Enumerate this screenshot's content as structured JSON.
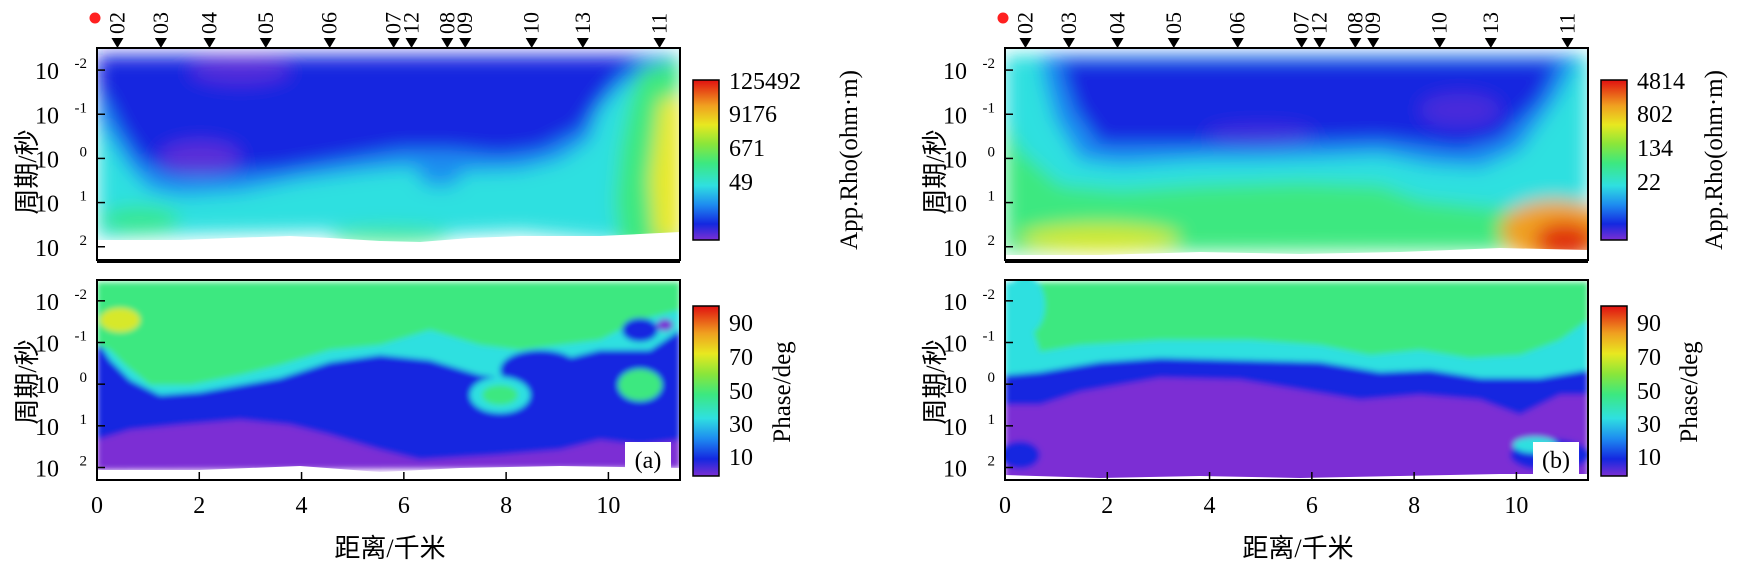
{
  "chart_data": [
    {
      "type": "heatmap",
      "panel_label": "(a)",
      "xlabel": "距离/千米",
      "ylabel": "周期/秒",
      "xlim": [
        0,
        11.4
      ],
      "x_ticks": [
        "0",
        "2",
        "4",
        "6",
        "8",
        "10"
      ],
      "x_tick_values": [
        0,
        2,
        4,
        6,
        8,
        10
      ],
      "y_ticks": [
        {
          "base": "10",
          "exp": "-2"
        },
        {
          "base": "10",
          "exp": "-1"
        },
        {
          "base": "10",
          "exp": "0"
        },
        {
          "base": "10",
          "exp": "1"
        },
        {
          "base": "10",
          "exp": "2"
        }
      ],
      "y_tick_exponents": [
        -2,
        -1,
        0,
        1,
        2
      ],
      "period_log_range": [
        -2.5,
        2.3
      ],
      "stations": [
        {
          "label": "02",
          "km": 0.4
        },
        {
          "label": "03",
          "km": 1.25
        },
        {
          "label": "04",
          "km": 2.2
        },
        {
          "label": "05",
          "km": 3.3
        },
        {
          "label": "06",
          "km": 4.55
        },
        {
          "label": "07",
          "km": 5.8
        },
        {
          "label": "12",
          "km": 6.15
        },
        {
          "label": "08",
          "km": 6.85
        },
        {
          "label": "09",
          "km": 7.2
        },
        {
          "label": "10",
          "km": 8.5
        },
        {
          "label": "13",
          "km": 9.5
        },
        {
          "label": "11",
          "km": 11.0
        }
      ],
      "rho_colorbar": {
        "label": "App.Rho(ohm·m)",
        "ticks": [
          "125492",
          "9176",
          "671",
          "49"
        ]
      },
      "phase_colorbar": {
        "label": "Phase/deg",
        "ticks": [
          "90",
          "70",
          "50",
          "30",
          "10"
        ]
      }
    },
    {
      "type": "heatmap",
      "panel_label": "(b)",
      "xlabel": "距离/千米",
      "ylabel": "周期/秒",
      "xlim": [
        0,
        11.4
      ],
      "x_ticks": [
        "0",
        "2",
        "4",
        "6",
        "8",
        "10"
      ],
      "x_tick_values": [
        0,
        2,
        4,
        6,
        8,
        10
      ],
      "y_ticks": [
        {
          "base": "10",
          "exp": "-2"
        },
        {
          "base": "10",
          "exp": "-1"
        },
        {
          "base": "10",
          "exp": "0"
        },
        {
          "base": "10",
          "exp": "1"
        },
        {
          "base": "10",
          "exp": "2"
        }
      ],
      "y_tick_exponents": [
        -2,
        -1,
        0,
        1,
        2
      ],
      "period_log_range": [
        -2.5,
        2.3
      ],
      "stations": [
        {
          "label": "02",
          "km": 0.4
        },
        {
          "label": "03",
          "km": 1.25
        },
        {
          "label": "04",
          "km": 2.2
        },
        {
          "label": "05",
          "km": 3.3
        },
        {
          "label": "06",
          "km": 4.55
        },
        {
          "label": "07",
          "km": 5.8
        },
        {
          "label": "12",
          "km": 6.15
        },
        {
          "label": "08",
          "km": 6.85
        },
        {
          "label": "09",
          "km": 7.2
        },
        {
          "label": "10",
          "km": 8.5
        },
        {
          "label": "13",
          "km": 9.5
        },
        {
          "label": "11",
          "km": 11.0
        }
      ],
      "rho_colorbar": {
        "label": "App.Rho(ohm·m)",
        "ticks": [
          "4814",
          "802",
          "134",
          "22"
        ]
      },
      "phase_colorbar": {
        "label": "Phase/deg",
        "ticks": [
          "90",
          "70",
          "50",
          "30",
          "10"
        ]
      }
    }
  ],
  "colors": {
    "scale": [
      "#7b2fd4",
      "#1428e0",
      "#1e50f0",
      "#1aa8e8",
      "#2fe0e0",
      "#3ce880",
      "#7ae63a",
      "#b8e830",
      "#f0e020",
      "#f0a020",
      "#f05020",
      "#e01010"
    ],
    "station_dot": "#ff2020"
  }
}
